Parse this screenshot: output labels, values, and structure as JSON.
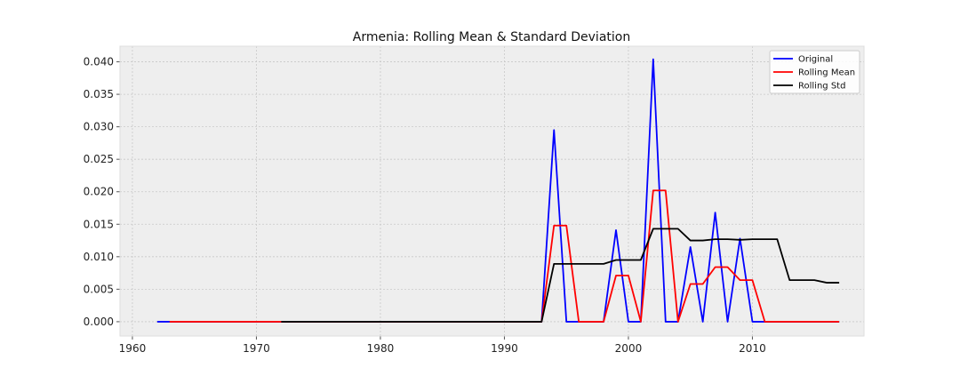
{
  "chart_data": {
    "type": "line",
    "title": "Armenia: Rolling Mean & Standard Deviation",
    "xlabel": "",
    "ylabel": "",
    "xlim": [
      1959,
      2019
    ],
    "ylim": [
      -0.0022,
      0.0424
    ],
    "x_ticks": [
      1960,
      1970,
      1980,
      1990,
      2000,
      2010
    ],
    "y_ticks": [
      0.0,
      0.005,
      0.01,
      0.015,
      0.02,
      0.025,
      0.03,
      0.035,
      0.04
    ],
    "y_tick_labels": [
      "0.000",
      "0.005",
      "0.010",
      "0.015",
      "0.020",
      "0.025",
      "0.030",
      "0.035",
      "0.040"
    ],
    "grid": true,
    "legend": "top-right",
    "series": [
      {
        "name": "Original",
        "color": "#0000ff",
        "points": [
          [
            1962,
            0
          ],
          [
            1963,
            0
          ],
          [
            1993,
            0
          ],
          [
            1994,
            0.0295
          ],
          [
            1995,
            0
          ],
          [
            1998,
            0
          ],
          [
            1999,
            0.0141
          ],
          [
            2000,
            0
          ],
          [
            2001,
            0
          ],
          [
            2002,
            0.0404
          ],
          [
            2003,
            0
          ],
          [
            2004,
            0
          ],
          [
            2005,
            0.0115
          ],
          [
            2006,
            0
          ],
          [
            2007,
            0.0168
          ],
          [
            2008,
            0
          ],
          [
            2009,
            0.0128
          ],
          [
            2010,
            0
          ],
          [
            2017,
            0
          ]
        ]
      },
      {
        "name": "Rolling Mean",
        "color": "#ff0000",
        "points": [
          [
            1963,
            0
          ],
          [
            1993,
            0
          ],
          [
            1994,
            0.0148
          ],
          [
            1995,
            0.0148
          ],
          [
            1996,
            0
          ],
          [
            1998,
            0
          ],
          [
            1999,
            0.0071
          ],
          [
            2000,
            0.0071
          ],
          [
            2001,
            0
          ],
          [
            2002,
            0.0202
          ],
          [
            2003,
            0.0202
          ],
          [
            2004,
            0
          ],
          [
            2005,
            0.0058
          ],
          [
            2006,
            0.0058
          ],
          [
            2007,
            0.0084
          ],
          [
            2008,
            0.0084
          ],
          [
            2009,
            0.0064
          ],
          [
            2010,
            0.0064
          ],
          [
            2011,
            0
          ],
          [
            2017,
            0
          ]
        ]
      },
      {
        "name": "Rolling Std",
        "color": "#000000",
        "points": [
          [
            1972,
            0
          ],
          [
            1993,
            0
          ],
          [
            1994,
            0.0089
          ],
          [
            1998,
            0.0089
          ],
          [
            1999,
            0.0095
          ],
          [
            2001,
            0.0095
          ],
          [
            2002,
            0.0143
          ],
          [
            2004,
            0.0143
          ],
          [
            2005,
            0.0125
          ],
          [
            2006,
            0.0125
          ],
          [
            2007,
            0.0127
          ],
          [
            2008,
            0.0127
          ],
          [
            2009,
            0.0126
          ],
          [
            2010,
            0.0127
          ],
          [
            2012,
            0.0127
          ],
          [
            2013,
            0.0064
          ],
          [
            2015,
            0.0064
          ],
          [
            2016,
            0.006
          ],
          [
            2017,
            0.006
          ]
        ]
      }
    ]
  }
}
